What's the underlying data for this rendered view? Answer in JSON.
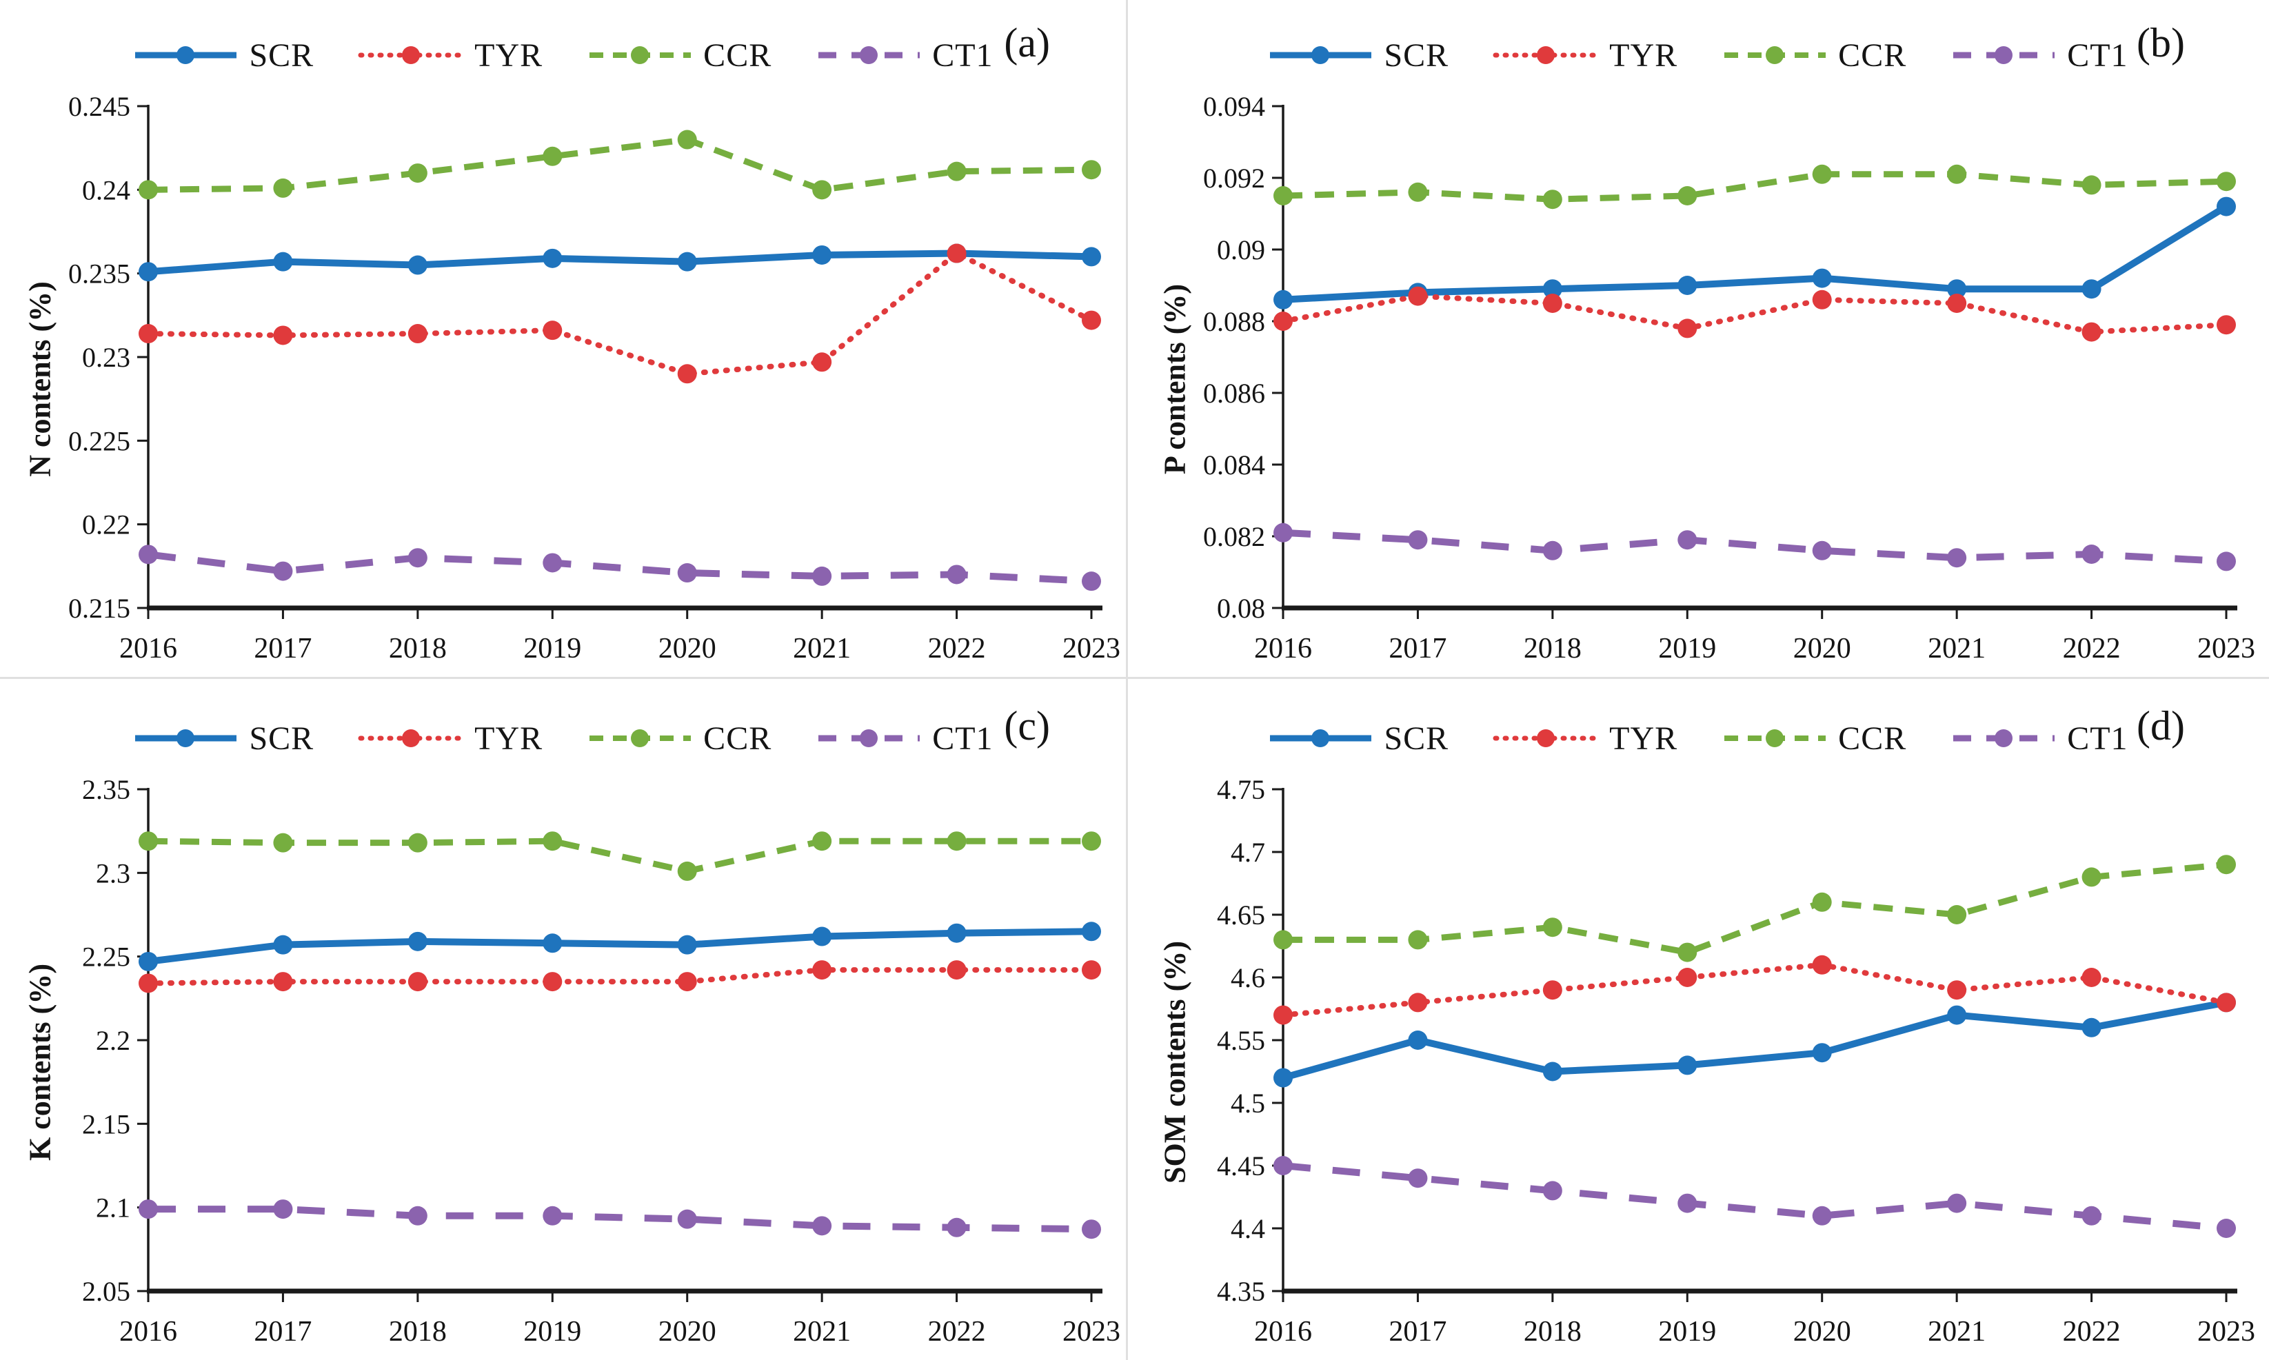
{
  "colors": {
    "scr": "#1F74BD",
    "tyr": "#E03A3C",
    "ccr": "#76AE3F",
    "ct1": "#8B63AE",
    "axis": "#1a1a1a",
    "divider": "#e0e0e0"
  },
  "chart_data": [
    {
      "type": "line",
      "panel_label": "(a)",
      "ylabel": "N contents (%)",
      "xlabel": "",
      "grid": false,
      "legend_position": "top",
      "x_tick_labels": [
        "2016",
        "2017",
        "2018",
        "2019",
        "2020",
        "2021",
        "2022",
        "2023"
      ],
      "ylim": [
        0.215,
        0.245
      ],
      "y_ticks": [
        0.215,
        0.22,
        0.225,
        0.23,
        0.235,
        0.24,
        0.245
      ],
      "y_tick_labels": [
        "0.215",
        "0.22",
        "0.225",
        "0.23",
        "0.235",
        "0.24",
        "0.245"
      ],
      "series": [
        {
          "name": "SCR",
          "style": "solid",
          "color": "#1F74BD",
          "values": [
            0.2351,
            0.2357,
            0.2355,
            0.2359,
            0.2357,
            0.2361,
            0.2362,
            0.236
          ]
        },
        {
          "name": "TYR",
          "style": "dotted",
          "color": "#E03A3C",
          "values": [
            0.2314,
            0.2313,
            0.2314,
            0.2316,
            0.229,
            0.2297,
            0.2362,
            0.2322
          ]
        },
        {
          "name": "CCR",
          "style": "dashed",
          "color": "#76AE3F",
          "values": [
            0.24,
            0.2401,
            0.241,
            0.242,
            0.243,
            0.24,
            0.2411,
            0.2412
          ]
        },
        {
          "name": "CT1",
          "style": "longdash",
          "color": "#8B63AE",
          "values": [
            0.2182,
            0.2172,
            0.218,
            0.2177,
            0.2171,
            0.2169,
            0.217,
            0.2166
          ]
        }
      ]
    },
    {
      "type": "line",
      "panel_label": "(b)",
      "ylabel": "P contents (%)",
      "xlabel": "",
      "grid": false,
      "legend_position": "top",
      "x_tick_labels": [
        "2016",
        "2017",
        "2018",
        "2019",
        "2020",
        "2021",
        "2022",
        "2023"
      ],
      "ylim": [
        0.08,
        0.094
      ],
      "y_ticks": [
        0.08,
        0.082,
        0.084,
        0.086,
        0.088,
        0.09,
        0.092,
        0.094
      ],
      "y_tick_labels": [
        "0.08",
        "0.082",
        "0.084",
        "0.086",
        "0.088",
        "0.09",
        "0.092",
        "0.094"
      ],
      "series": [
        {
          "name": "SCR",
          "style": "solid",
          "color": "#1F74BD",
          "values": [
            0.0886,
            0.0888,
            0.0889,
            0.089,
            0.0892,
            0.0889,
            0.0889,
            0.0912
          ]
        },
        {
          "name": "TYR",
          "style": "dotted",
          "color": "#E03A3C",
          "values": [
            0.088,
            0.0887,
            0.0885,
            0.0878,
            0.0886,
            0.0885,
            0.0877,
            0.0879
          ]
        },
        {
          "name": "CCR",
          "style": "dashed",
          "color": "#76AE3F",
          "values": [
            0.0915,
            0.0916,
            0.0914,
            0.0915,
            0.0921,
            0.0921,
            0.0918,
            0.0919
          ]
        },
        {
          "name": "CT1",
          "style": "longdash",
          "color": "#8B63AE",
          "values": [
            0.0821,
            0.0819,
            0.0816,
            0.0819,
            0.0816,
            0.0814,
            0.0815,
            0.0813
          ]
        }
      ]
    },
    {
      "type": "line",
      "panel_label": "(c)",
      "ylabel": "K contents (%)",
      "xlabel": "",
      "grid": false,
      "legend_position": "top",
      "x_tick_labels": [
        "2016",
        "2017",
        "2018",
        "2019",
        "2020",
        "2021",
        "2022",
        "2023"
      ],
      "ylim": [
        2.05,
        2.35
      ],
      "y_ticks": [
        2.05,
        2.1,
        2.15,
        2.2,
        2.25,
        2.3,
        2.35
      ],
      "y_tick_labels": [
        "2.05",
        "2.1",
        "2.15",
        "2.2",
        "2.25",
        "2.3",
        "2.35"
      ],
      "series": [
        {
          "name": "SCR",
          "style": "solid",
          "color": "#1F74BD",
          "values": [
            2.247,
            2.257,
            2.259,
            2.258,
            2.257,
            2.262,
            2.264,
            2.265
          ]
        },
        {
          "name": "TYR",
          "style": "dotted",
          "color": "#E03A3C",
          "values": [
            2.234,
            2.235,
            2.235,
            2.235,
            2.235,
            2.242,
            2.242,
            2.242
          ]
        },
        {
          "name": "CCR",
          "style": "dashed",
          "color": "#76AE3F",
          "values": [
            2.319,
            2.318,
            2.318,
            2.319,
            2.301,
            2.319,
            2.319,
            2.319
          ]
        },
        {
          "name": "CT1",
          "style": "longdash",
          "color": "#8B63AE",
          "values": [
            2.099,
            2.099,
            2.095,
            2.095,
            2.093,
            2.089,
            2.088,
            2.087
          ]
        }
      ]
    },
    {
      "type": "line",
      "panel_label": "(d)",
      "ylabel": "SOM contents (%)",
      "xlabel": "",
      "grid": false,
      "legend_position": "top",
      "x_tick_labels": [
        "2016",
        "2017",
        "2018",
        "2019",
        "2020",
        "2021",
        "2022",
        "2023"
      ],
      "ylim": [
        4.35,
        4.75
      ],
      "y_ticks": [
        4.35,
        4.4,
        4.45,
        4.5,
        4.55,
        4.6,
        4.65,
        4.7,
        4.75
      ],
      "y_tick_labels": [
        "4.35",
        "4.4",
        "4.45",
        "4.5",
        "4.55",
        "4.6",
        "4.65",
        "4.7",
        "4.75"
      ],
      "series": [
        {
          "name": "SCR",
          "style": "solid",
          "color": "#1F74BD",
          "values": [
            4.52,
            4.55,
            4.525,
            4.53,
            4.54,
            4.57,
            4.56,
            4.58
          ]
        },
        {
          "name": "TYR",
          "style": "dotted",
          "color": "#E03A3C",
          "values": [
            4.57,
            4.58,
            4.59,
            4.6,
            4.61,
            4.59,
            4.6,
            4.58
          ]
        },
        {
          "name": "CCR",
          "style": "dashed",
          "color": "#76AE3F",
          "values": [
            4.63,
            4.63,
            4.64,
            4.62,
            4.66,
            4.65,
            4.68,
            4.69
          ]
        },
        {
          "name": "CT1",
          "style": "longdash",
          "color": "#8B63AE",
          "values": [
            4.45,
            4.44,
            4.43,
            4.42,
            4.41,
            4.42,
            4.41,
            4.4
          ]
        }
      ]
    }
  ]
}
